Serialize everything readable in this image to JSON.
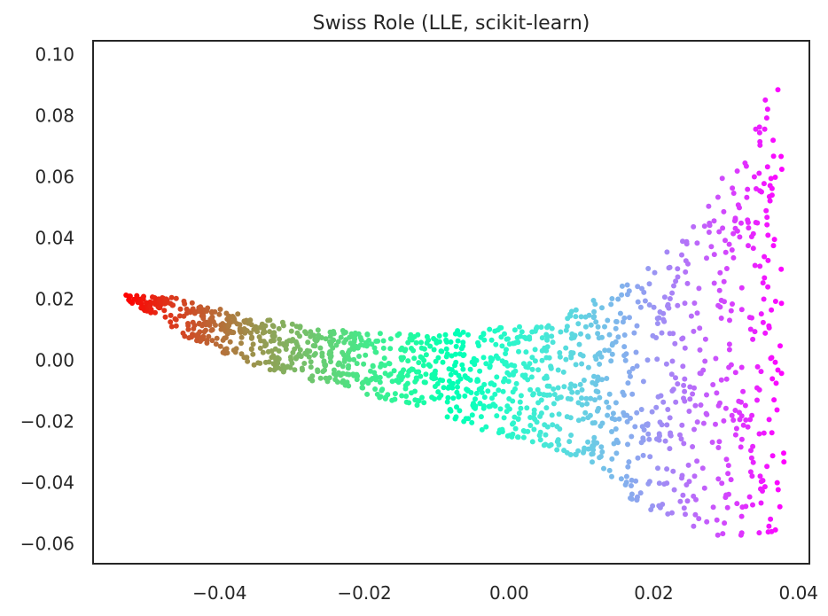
{
  "chart_data": {
    "type": "scatter",
    "title": "Swiss Role (LLE, scikit-learn)",
    "xlabel": "",
    "ylabel": "",
    "xlim": [
      -0.0575,
      0.0415
    ],
    "ylim": [
      -0.0665,
      0.1045
    ],
    "x_ticks": [
      -0.04,
      -0.02,
      0.0,
      0.02,
      0.04
    ],
    "x_tick_labels": [
      "−0.04",
      "−0.02",
      "0.00",
      "0.02",
      "0.04"
    ],
    "y_ticks": [
      -0.06,
      -0.04,
      -0.02,
      0.0,
      0.02,
      0.04,
      0.06,
      0.08,
      0.1
    ],
    "y_tick_labels": [
      "−0.06",
      "−0.04",
      "−0.02",
      "0.00",
      "0.02",
      "0.04",
      "0.06",
      "0.08",
      "0.10"
    ],
    "grid": false,
    "legend": "none",
    "colormap": "rainbow",
    "point_color": "colored by position along the roll (red at left, through orange, yellow, green, cyan, blue, to violet at right)",
    "n_points": 1500,
    "points_summary": "Points form a band from about (-0.053, 0.022) on the left, descending gently toward x=0 while widening, then fanning out on the right between x=0.015 and x=0.038, where y spans roughly -0.06 to 0.097.",
    "envelope": {
      "x": [
        -0.053,
        -0.045,
        -0.035,
        -0.025,
        -0.015,
        -0.005,
        0.005,
        0.012,
        0.018,
        0.024,
        0.028,
        0.032,
        0.035,
        0.038
      ],
      "y_low": [
        0.02,
        0.008,
        -0.002,
        -0.008,
        -0.014,
        -0.022,
        -0.028,
        -0.034,
        -0.048,
        -0.055,
        -0.058,
        -0.058,
        -0.057,
        -0.056
      ],
      "y_high": [
        0.023,
        0.02,
        0.014,
        0.01,
        0.009,
        0.01,
        0.012,
        0.02,
        0.028,
        0.04,
        0.055,
        0.068,
        0.085,
        0.097
      ]
    }
  }
}
